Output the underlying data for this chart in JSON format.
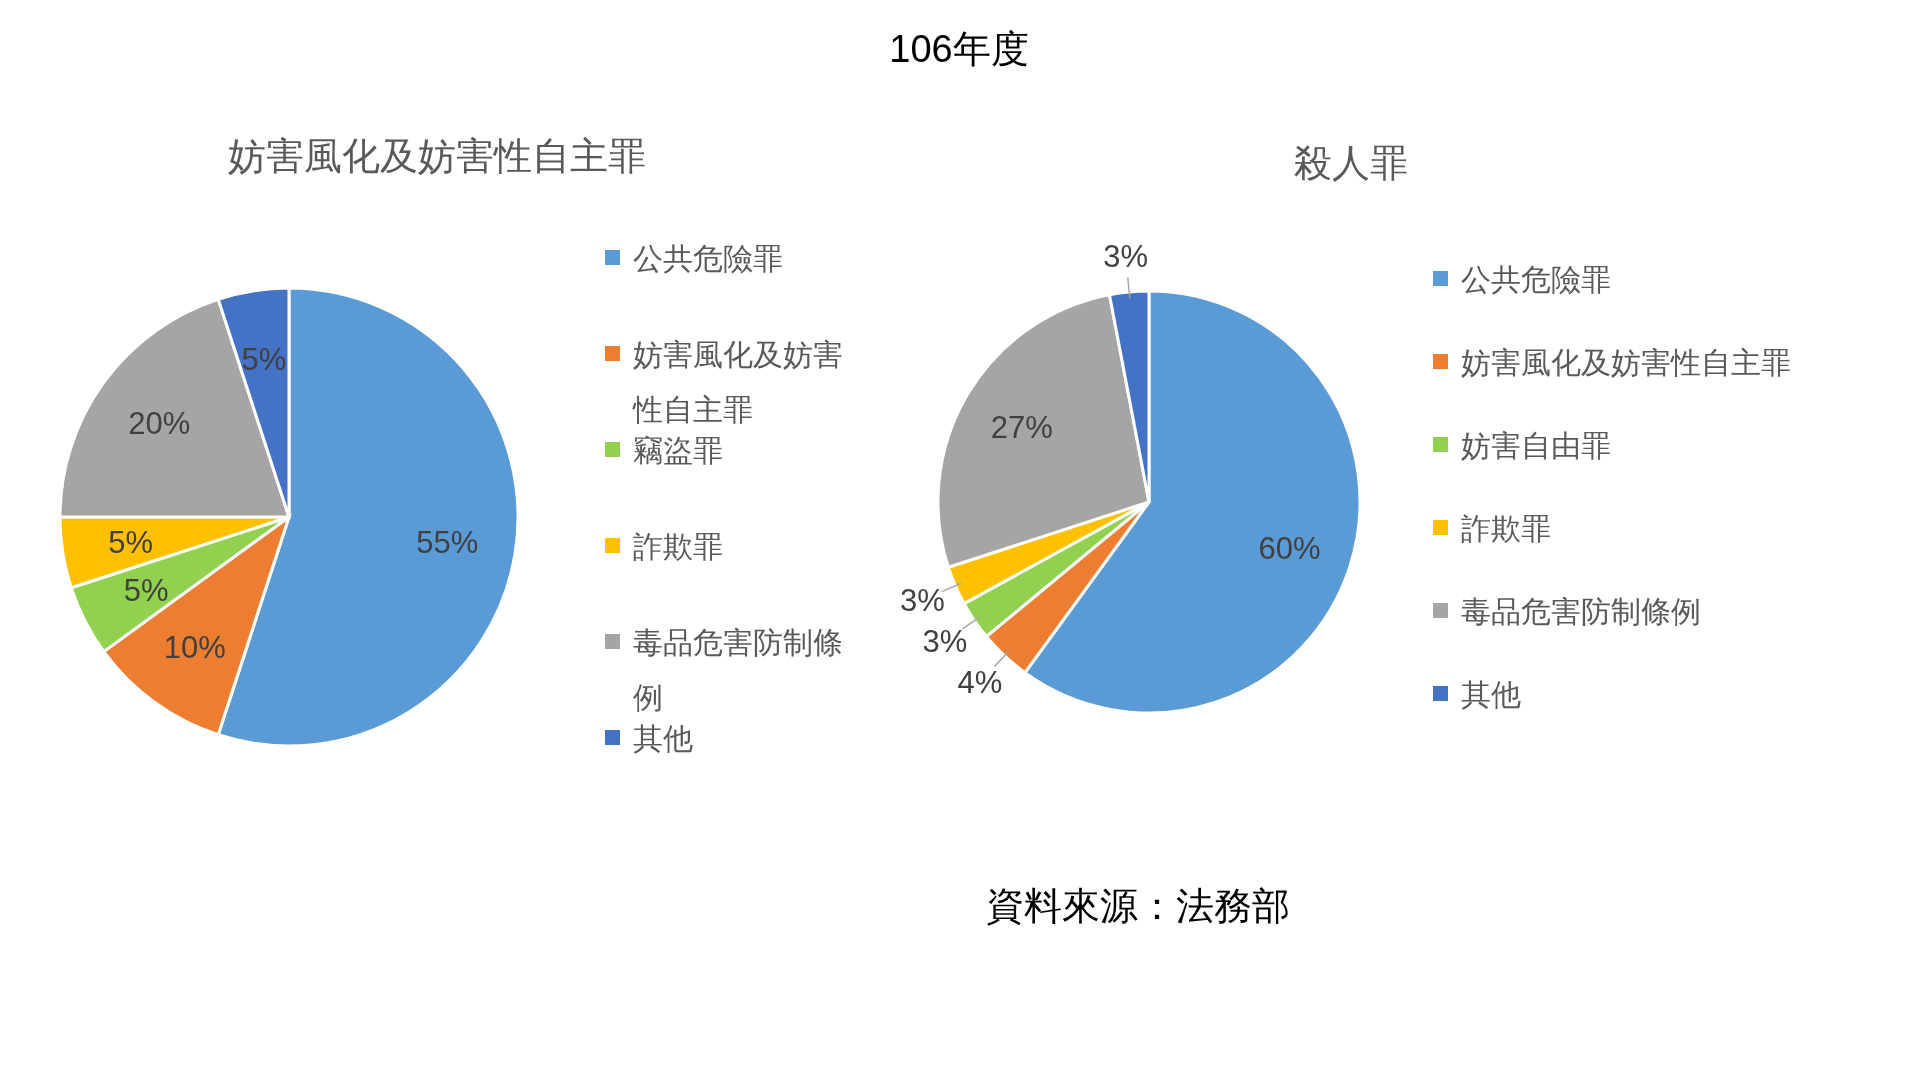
{
  "chart_data": [
    {
      "type": "pie",
      "title": "妨害風化及妨害性自主罪",
      "annotations": [
        "106年度"
      ],
      "categories": [
        "公共危險罪",
        "妨害風化及妨害性自主罪",
        "竊盜罪",
        "詐欺罪",
        "毒品危害防制條例",
        "其他"
      ],
      "values": [
        55,
        10,
        5,
        5,
        20,
        5
      ],
      "value_labels": [
        "55%",
        "10%",
        "5%",
        "5%",
        "20%",
        "5%"
      ],
      "colors": [
        "#5b9bd5",
        "#ed7d31",
        "#92d050",
        "#ffc000",
        "#a5a5a5",
        "#4472c4"
      ],
      "legend": "right"
    },
    {
      "type": "pie",
      "title": "殺人罪",
      "annotations": [
        "資料來源：法務部"
      ],
      "categories": [
        "公共危險罪",
        "妨害風化及妨害性自主罪",
        "妨害自由罪",
        "詐欺罪",
        "毒品危害防制條例",
        "其他"
      ],
      "values": [
        60,
        4,
        3,
        3,
        27,
        3
      ],
      "value_labels": [
        "60%",
        "4%",
        "3%",
        "3%",
        "27%",
        "3%"
      ],
      "colors": [
        "#5b9bd5",
        "#ed7d31",
        "#92d050",
        "#ffc000",
        "#a5a5a5",
        "#4472c4"
      ],
      "legend": "right"
    }
  ]
}
